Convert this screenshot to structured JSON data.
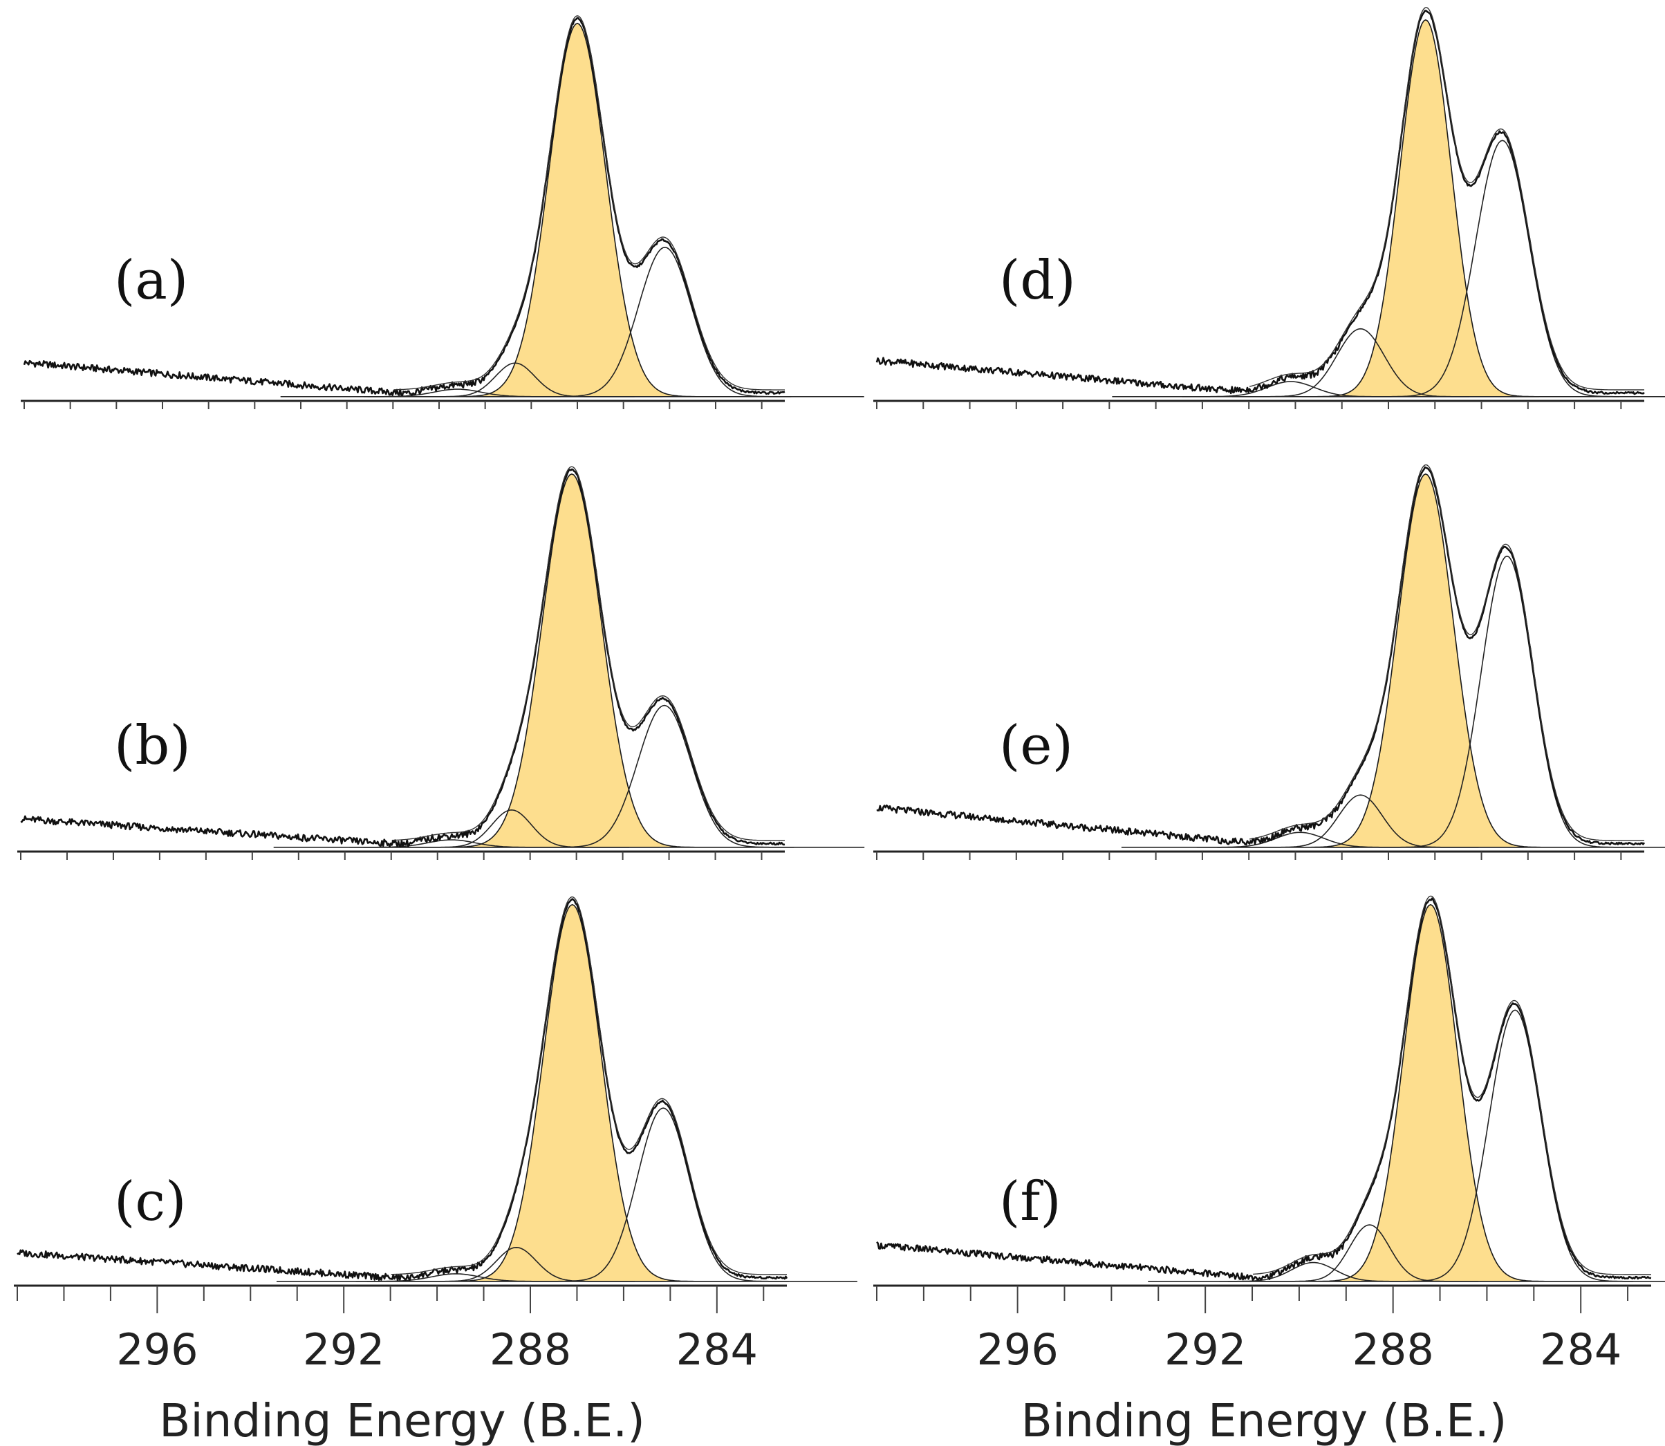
{
  "figure_colors": {
    "main_peak_fill": "#FDDE8E",
    "line": "#111111"
  },
  "chart_data": [
    {
      "type": "line",
      "panel": "(a)",
      "xlabel": "",
      "xlim": [
        299,
        282.5
      ],
      "x_ticks": [],
      "baseline_left": 0.085,
      "baseline_slope_end": 0.01,
      "components": [
        {
          "center": 287.0,
          "height": 1.0,
          "fwhm": 1.45,
          "filled": true
        },
        {
          "center": 285.1,
          "height": 0.4,
          "fwhm": 1.35,
          "filled": false
        },
        {
          "center": 288.35,
          "height": 0.09,
          "fwhm": 1.0,
          "filled": false
        },
        {
          "center": 289.6,
          "height": 0.02,
          "fwhm": 1.2,
          "filled": false
        }
      ]
    },
    {
      "type": "line",
      "panel": "(b)",
      "xlabel": "",
      "xlim": [
        299,
        282.5
      ],
      "x_ticks": [],
      "baseline_left": 0.07,
      "baseline_slope_end": 0.01,
      "components": [
        {
          "center": 287.1,
          "height": 1.0,
          "fwhm": 1.5,
          "filled": true
        },
        {
          "center": 285.1,
          "height": 0.38,
          "fwhm": 1.35,
          "filled": false
        },
        {
          "center": 288.4,
          "height": 0.1,
          "fwhm": 1.0,
          "filled": false
        },
        {
          "center": 289.7,
          "height": 0.02,
          "fwhm": 1.2,
          "filled": false
        }
      ]
    },
    {
      "type": "line",
      "panel": "(c)",
      "xlabel": "Binding Energy (B.E.)",
      "xlim": [
        299,
        282.5
      ],
      "x_ticks": [
        "296",
        "292",
        "288",
        "284"
      ],
      "baseline_left": 0.07,
      "baseline_slope_end": 0.01,
      "components": [
        {
          "center": 287.1,
          "height": 1.0,
          "fwhm": 1.45,
          "filled": true
        },
        {
          "center": 285.15,
          "height": 0.46,
          "fwhm": 1.3,
          "filled": false
        },
        {
          "center": 288.3,
          "height": 0.09,
          "fwhm": 1.0,
          "filled": false
        },
        {
          "center": 289.6,
          "height": 0.02,
          "fwhm": 1.2,
          "filled": false
        }
      ]
    },
    {
      "type": "line",
      "panel": "(d)",
      "xlabel": "",
      "xlim": [
        299,
        282.5
      ],
      "x_ticks": [],
      "baseline_left": 0.09,
      "baseline_slope_end": 0.01,
      "components": [
        {
          "center": 287.2,
          "height": 1.0,
          "fwhm": 1.3,
          "filled": true
        },
        {
          "center": 285.55,
          "height": 0.68,
          "fwhm": 1.35,
          "filled": false
        },
        {
          "center": 288.6,
          "height": 0.18,
          "fwhm": 1.2,
          "filled": false
        },
        {
          "center": 290.1,
          "height": 0.04,
          "fwhm": 1.2,
          "filled": false
        }
      ]
    },
    {
      "type": "line",
      "panel": "(e)",
      "xlabel": "",
      "xlim": [
        299,
        282.5
      ],
      "x_ticks": [],
      "baseline_left": 0.1,
      "baseline_slope_end": 0.01,
      "components": [
        {
          "center": 287.2,
          "height": 1.0,
          "fwhm": 1.4,
          "filled": true
        },
        {
          "center": 285.45,
          "height": 0.78,
          "fwhm": 1.3,
          "filled": false
        },
        {
          "center": 288.6,
          "height": 0.14,
          "fwhm": 1.1,
          "filled": false
        },
        {
          "center": 289.9,
          "height": 0.04,
          "fwhm": 1.2,
          "filled": false
        }
      ]
    },
    {
      "type": "line",
      "panel": "(f)",
      "xlabel": "Binding Energy (B.E.)",
      "xlim": [
        299,
        282.5
      ],
      "x_ticks": [
        "296",
        "292",
        "288",
        "284"
      ],
      "baseline_left": 0.09,
      "baseline_slope_end": 0.01,
      "components": [
        {
          "center": 287.2,
          "height": 1.0,
          "fwhm": 1.35,
          "filled": true
        },
        {
          "center": 285.4,
          "height": 0.72,
          "fwhm": 1.3,
          "filled": false
        },
        {
          "center": 288.5,
          "height": 0.15,
          "fwhm": 1.0,
          "filled": false
        },
        {
          "center": 289.7,
          "height": 0.05,
          "fwhm": 1.1,
          "filled": false
        }
      ]
    }
  ]
}
